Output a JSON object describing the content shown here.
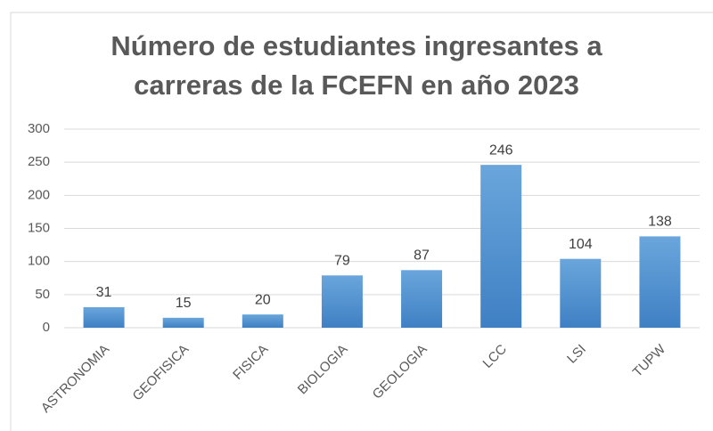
{
  "chart_data": {
    "type": "bar",
    "title": "Número de estudiantes ingresantes a carreras de la FCEFN en año 2023",
    "categories": [
      "ASTRONOMIA",
      "GEOFISICA",
      "FISICA",
      "BIOLOGIA",
      "GEOLOGIA",
      "LCC",
      "LSI",
      "TUPW"
    ],
    "values": [
      31,
      15,
      20,
      79,
      87,
      246,
      104,
      138
    ],
    "color": "#5b9bd5",
    "ylim": [
      0,
      300
    ],
    "yticks": [
      0,
      50,
      100,
      150,
      200,
      250,
      300
    ],
    "grid": true
  }
}
